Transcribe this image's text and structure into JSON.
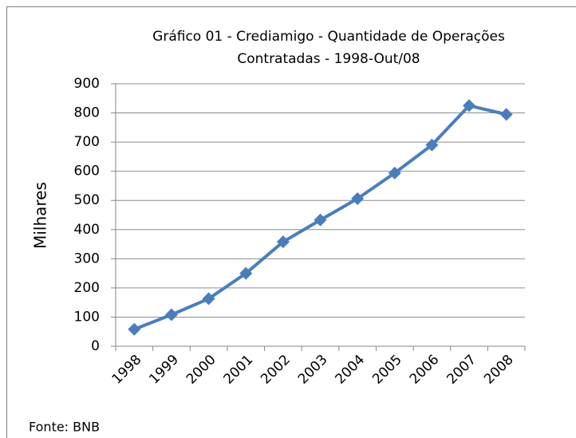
{
  "chart_data": {
    "type": "line",
    "title": [
      "Gráfico 01 - Crediamigo - Quantidade de Operações",
      "Contratadas - 1998-Out/08"
    ],
    "y_label": "Milhares",
    "source": "Fonte: BNB",
    "categories": [
      "1998",
      "1999",
      "2000",
      "2001",
      "2002",
      "2003",
      "2004",
      "2005",
      "2006",
      "2007",
      "2008"
    ],
    "series": [
      {
        "name": "Crediamigo",
        "color": "#4a7ebb",
        "values": [
          58,
          108,
          163,
          250,
          358,
          433,
          506,
          594,
          690,
          825,
          795
        ]
      }
    ],
    "ylim": [
      0,
      900
    ],
    "yticks": [
      0,
      100,
      200,
      300,
      400,
      500,
      600,
      700,
      800,
      900
    ],
    "grid": true
  }
}
